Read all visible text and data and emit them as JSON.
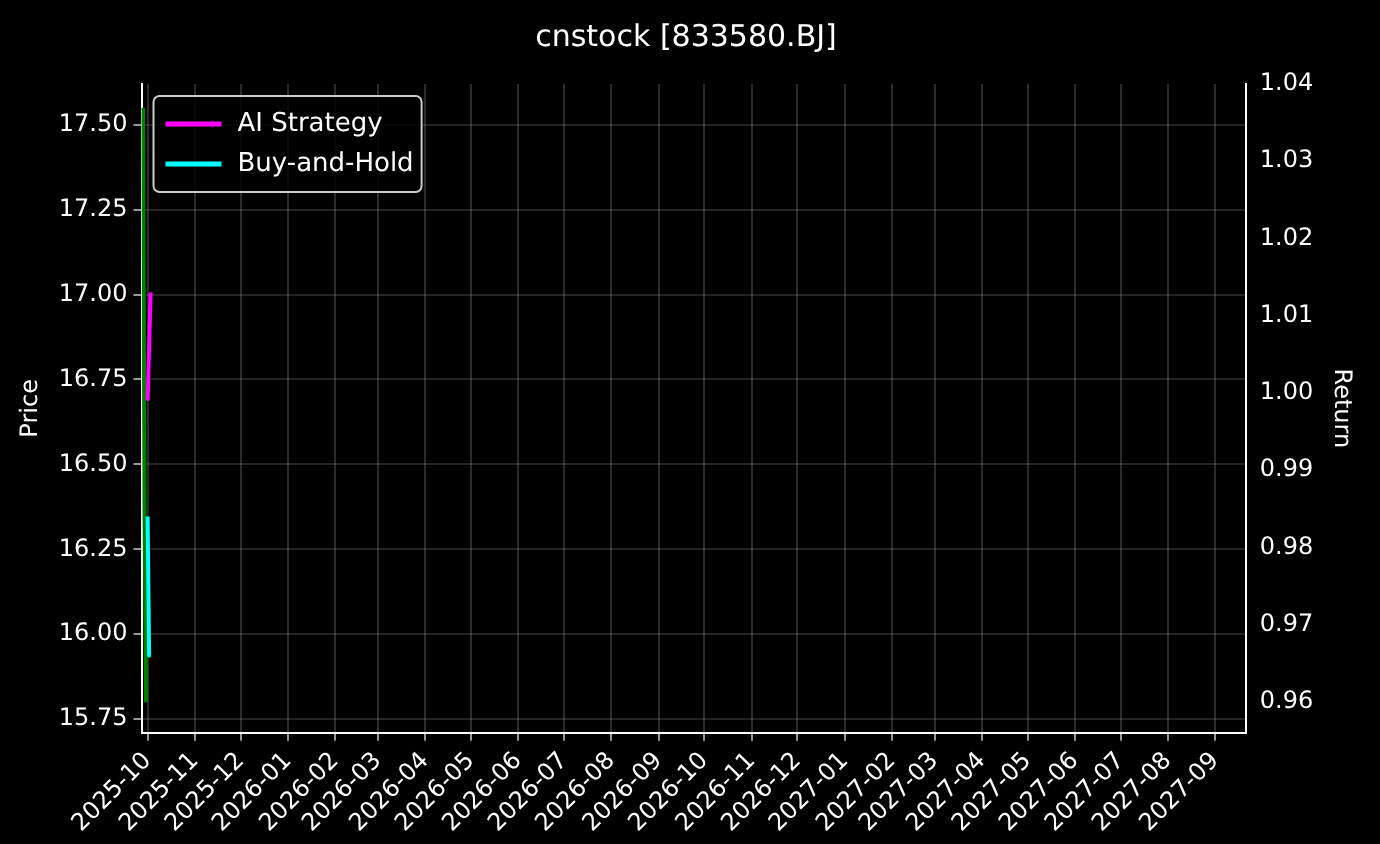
{
  "chart_data": {
    "type": "line",
    "title": "cnstock [833580.BJ]",
    "ylabel": "Price",
    "y2label": "Return",
    "series": [
      {
        "color": "#008000",
        "x": [
          "2025-09-28",
          "2025-09-29",
          "2025-09-30"
        ],
        "values": [
          17.55,
          16.35,
          15.8
        ]
      },
      {
        "name": "AI Strategy",
        "color": "#ff00ff",
        "axis": "y2",
        "x": [
          "2025-10-01",
          "2025-10-03"
        ],
        "values": [
          0.999,
          1.013
        ]
      },
      {
        "name": "Buy-and-Hold",
        "color": "#00ffff",
        "axis": "y2",
        "x": [
          "2025-10-01",
          "2025-10-02",
          "2025-10-03"
        ],
        "values": [
          0.984,
          0.966,
          0.966
        ]
      }
    ],
    "xlim": [
      "2025-09-27",
      "2027-09-21"
    ],
    "xticks": [
      {
        "value": "2025-10-01",
        "label": "2025-10"
      },
      {
        "value": "2025-11-01",
        "label": "2025-11"
      },
      {
        "value": "2025-12-01",
        "label": "2025-12"
      },
      {
        "value": "2026-01-01",
        "label": "2026-01"
      },
      {
        "value": "2026-02-01",
        "label": "2026-02"
      },
      {
        "value": "2026-03-01",
        "label": "2026-03"
      },
      {
        "value": "2026-04-01",
        "label": "2026-04"
      },
      {
        "value": "2026-05-01",
        "label": "2026-05"
      },
      {
        "value": "2026-06-01",
        "label": "2026-06"
      },
      {
        "value": "2026-07-01",
        "label": "2026-07"
      },
      {
        "value": "2026-08-01",
        "label": "2026-08"
      },
      {
        "value": "2026-09-01",
        "label": "2026-09"
      },
      {
        "value": "2026-10-01",
        "label": "2026-10"
      },
      {
        "value": "2026-11-01",
        "label": "2026-11"
      },
      {
        "value": "2026-12-01",
        "label": "2026-12"
      },
      {
        "value": "2027-01-01",
        "label": "2027-01"
      },
      {
        "value": "2027-02-01",
        "label": "2027-02"
      },
      {
        "value": "2027-03-01",
        "label": "2027-03"
      },
      {
        "value": "2027-04-01",
        "label": "2027-04"
      },
      {
        "value": "2027-05-01",
        "label": "2027-05"
      },
      {
        "value": "2027-06-01",
        "label": "2027-06"
      },
      {
        "value": "2027-07-01",
        "label": "2027-07"
      },
      {
        "value": "2027-08-01",
        "label": "2027-08"
      },
      {
        "value": "2027-09-01",
        "label": "2027-09"
      }
    ],
    "ylim": [
      15.71,
      17.62
    ],
    "yticks": [
      15.75,
      {
        "value": 16,
        "label": "16.00"
      },
      16.25,
      {
        "value": 16.5,
        "label": "16.50"
      },
      16.75,
      {
        "value": 17,
        "label": "17.00"
      },
      17.25,
      {
        "value": 17.5,
        "label": "17.50"
      }
    ],
    "y2lim": [
      0.956,
      1.04
    ],
    "y2ticks": [
      0.96,
      0.97,
      0.98,
      0.99,
      {
        "value": 1,
        "label": "1.00"
      },
      1.01,
      1.02,
      1.03,
      1.04
    ],
    "grid": true,
    "legend": "top left",
    "marker": "none",
    "line_style": "solid"
  }
}
